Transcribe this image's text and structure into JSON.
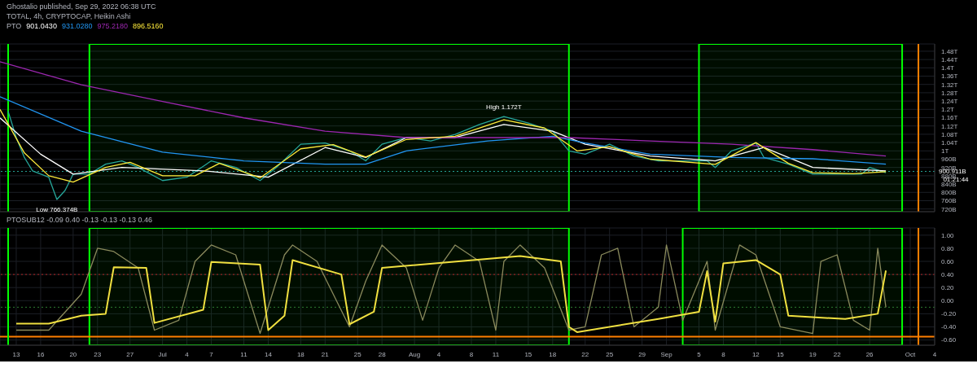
{
  "chart_data": [
    {
      "type": "line",
      "title": "TOTAL, 4h, CRYPTOCAP, Heikin Ashi",
      "legend_title": "PTO",
      "legend": "top left",
      "grid": true,
      "tick_labels": "y",
      "line_style": "solid",
      "marker": "none",
      "annotations": [
        "Ghostalio published, Sep 29, 2022 06:38 UTC",
        "01:21:44",
        {
          "text": "High 1.172T",
          "x": "2022-08-12",
          "y": 1172000000000
        },
        {
          "text": "Low 766.374B",
          "x": "2022-06-18",
          "y": 766374000000
        }
      ],
      "xlim": [
        "2022-06-11",
        "2022-10-04"
      ],
      "xticks": [
        {
          "value": "2022-06-13",
          "label": null
        },
        {
          "value": "2022-06-16",
          "label": null
        },
        {
          "value": "2022-06-20",
          "label": null
        },
        {
          "value": "2022-06-23",
          "label": null
        },
        {
          "value": "2022-06-27",
          "label": null
        },
        {
          "value": "2022-07-01",
          "label": null
        },
        {
          "value": "2022-07-04",
          "label": null
        },
        {
          "value": "2022-07-07",
          "label": null
        },
        {
          "value": "2022-07-11",
          "label": null
        },
        {
          "value": "2022-07-14",
          "label": null
        },
        {
          "value": "2022-07-18",
          "label": null
        },
        {
          "value": "2022-07-21",
          "label": null
        },
        {
          "value": "2022-07-25",
          "label": null
        },
        {
          "value": "2022-07-28",
          "label": null
        },
        {
          "value": "2022-08-01",
          "label": null
        },
        {
          "value": "2022-08-04",
          "label": null
        },
        {
          "value": "2022-08-08",
          "label": null
        },
        {
          "value": "2022-08-11",
          "label": null
        },
        {
          "value": "2022-08-15",
          "label": null
        },
        {
          "value": "2022-08-18",
          "label": null
        },
        {
          "value": "2022-08-22",
          "label": null
        },
        {
          "value": "2022-08-25",
          "label": null
        },
        {
          "value": "2022-08-29",
          "label": null
        },
        {
          "value": "2022-09-01",
          "label": null
        },
        {
          "value": "2022-09-05",
          "label": null
        },
        {
          "value": "2022-09-08",
          "label": null
        },
        {
          "value": "2022-09-12",
          "label": null
        },
        {
          "value": "2022-09-15",
          "label": null
        },
        {
          "value": "2022-09-19",
          "label": null
        },
        {
          "value": "2022-09-22",
          "label": null
        },
        {
          "value": "2022-09-26",
          "label": null
        },
        {
          "value": "2022-10-01",
          "label": null
        },
        {
          "value": "2022-10-04",
          "label": null
        }
      ],
      "ylim": [
        707000000000,
        1515000000000
      ],
      "yticks": [
        {
          "value": 720000000000,
          "label": "720B"
        },
        {
          "value": 760000000000,
          "label": "760B"
        },
        {
          "value": 800000000000,
          "label": "800B"
        },
        {
          "value": 840000000000,
          "label": "840B"
        },
        {
          "value": 880000000000,
          "label": "880B"
        },
        {
          "value": 920000000000,
          "label": "920B"
        },
        {
          "value": 960000000000,
          "label": "960B"
        },
        {
          "value": 1000000000000,
          "label": "1T"
        },
        {
          "value": 1040000000000,
          "label": "1.04T"
        },
        {
          "value": 1080000000000,
          "label": "1.08T"
        },
        {
          "value": 1120000000000,
          "label": "1.12T"
        },
        {
          "value": 1160000000000,
          "label": "1.16T"
        },
        {
          "value": 1200000000000,
          "label": "1.2T"
        },
        {
          "value": 1240000000000,
          "label": "1.24T"
        },
        {
          "value": 1280000000000,
          "label": "1.28T"
        },
        {
          "value": 1320000000000,
          "label": "1.32T"
        },
        {
          "value": 1360000000000,
          "label": "1.36T"
        },
        {
          "value": 1400000000000,
          "label": "1.4T"
        },
        {
          "value": 1440000000000,
          "label": "1.44T"
        },
        {
          "value": 1480000000000,
          "label": "1.48T"
        }
      ],
      "ref_lines": [
        {
          "axis": "y",
          "value": 900911000000,
          "label": "900.911B",
          "color": "#26a69a",
          "line_style": "dotted"
        },
        {
          "axis": "x",
          "value": "2022-06-12",
          "color": "#00ff00"
        },
        {
          "axis": "x",
          "value": "2022-10-02",
          "color": "#ff7f00"
        }
      ],
      "bands": [
        {
          "axis": "x",
          "from": "2022-06-22",
          "to": "2022-08-20",
          "color": "#00ff00"
        },
        {
          "axis": "x",
          "from": "2022-09-05",
          "to": "2022-09-30",
          "color": "#00ff00"
        }
      ],
      "series": [
        {
          "color": "#26a69a",
          "x": [
            "2022-06-12",
            "2022-06-13",
            "2022-06-14",
            "2022-06-15",
            "2022-06-17",
            "2022-06-18",
            "2022-06-19",
            "2022-06-20",
            "2022-06-22",
            "2022-06-24",
            "2022-06-26",
            "2022-06-28",
            "2022-07-01",
            "2022-07-04",
            "2022-07-07",
            "2022-07-10",
            "2022-07-13",
            "2022-07-15",
            "2022-07-18",
            "2022-07-21",
            "2022-07-24",
            "2022-07-26",
            "2022-07-28",
            "2022-07-31",
            "2022-08-03",
            "2022-08-06",
            "2022-08-09",
            "2022-08-12",
            "2022-08-15",
            "2022-08-18",
            "2022-08-20",
            "2022-08-22",
            "2022-08-25",
            "2022-08-28",
            "2022-08-31",
            "2022-09-03",
            "2022-09-06",
            "2022-09-07",
            "2022-09-09",
            "2022-09-12",
            "2022-09-13",
            "2022-09-16",
            "2022-09-19",
            "2022-09-22",
            "2022-09-25",
            "2022-09-26",
            "2022-09-28"
          ],
          "values": [
            1191000000000,
            1064000000000,
            968000000000,
            904000000000,
            873000000000,
            766000000000,
            809000000000,
            888000000000,
            888000000000,
            936000000000,
            952000000000,
            920000000000,
            857000000000,
            873000000000,
            952000000000,
            920000000000,
            857000000000,
            920000000000,
            1032000000000,
            1038000000000,
            1000000000000,
            952000000000,
            1032000000000,
            1064000000000,
            1048000000000,
            1079000000000,
            1127000000000,
            1165000000000,
            1134000000000,
            1095000000000,
            1000000000000,
            984000000000,
            1032000000000,
            975000000000,
            952000000000,
            952000000000,
            952000000000,
            920000000000,
            1000000000000,
            1038000000000,
            968000000000,
            936000000000,
            888000000000,
            888000000000,
            888000000000,
            920000000000,
            895000000000
          ]
        },
        {
          "name": "901.0430",
          "color": "#ffffff",
          "x": [
            "2022-06-11",
            "2022-06-16",
            "2022-06-20",
            "2022-06-26",
            "2022-07-06",
            "2022-07-14",
            "2022-07-21",
            "2022-07-26",
            "2022-07-31",
            "2022-08-06",
            "2022-08-12",
            "2022-08-18",
            "2022-08-22",
            "2022-08-30",
            "2022-09-07",
            "2022-09-13",
            "2022-09-19",
            "2022-09-28"
          ],
          "values": [
            1159000000000,
            984000000000,
            888000000000,
            920000000000,
            904000000000,
            873000000000,
            1016000000000,
            968000000000,
            1064000000000,
            1064000000000,
            1127000000000,
            1095000000000,
            1032000000000,
            975000000000,
            952000000000,
            1016000000000,
            920000000000,
            904000000000
          ]
        },
        {
          "name": "931.0280",
          "color": "#2196f3",
          "x": [
            "2022-06-11",
            "2022-06-21",
            "2022-07-01",
            "2022-07-11",
            "2022-07-21",
            "2022-07-26",
            "2022-07-31",
            "2022-08-10",
            "2022-08-18",
            "2022-08-22",
            "2022-08-30",
            "2022-09-09",
            "2022-09-19",
            "2022-09-28"
          ],
          "values": [
            1261000000000,
            1095000000000,
            994000000000,
            952000000000,
            936000000000,
            936000000000,
            1000000000000,
            1048000000000,
            1070000000000,
            1038000000000,
            984000000000,
            968000000000,
            962000000000,
            936000000000
          ]
        },
        {
          "name": "975.2180",
          "color": "#9c27b0",
          "x": [
            "2022-06-11",
            "2022-06-21",
            "2022-07-01",
            "2022-07-11",
            "2022-07-21",
            "2022-07-31",
            "2022-08-10",
            "2022-08-20",
            "2022-08-30",
            "2022-09-09",
            "2022-09-19",
            "2022-09-28"
          ],
          "values": [
            1429000000000,
            1318000000000,
            1238000000000,
            1159000000000,
            1095000000000,
            1064000000000,
            1064000000000,
            1064000000000,
            1048000000000,
            1032000000000,
            1006000000000,
            975000000000
          ]
        },
        {
          "name": "896.5160",
          "color": "#ffeb3b",
          "x": [
            "2022-06-11",
            "2022-06-14",
            "2022-06-17",
            "2022-06-20",
            "2022-06-24",
            "2022-06-27",
            "2022-07-01",
            "2022-07-05",
            "2022-07-08",
            "2022-07-13",
            "2022-07-18",
            "2022-07-22",
            "2022-07-26",
            "2022-07-31",
            "2022-08-06",
            "2022-08-12",
            "2022-08-17",
            "2022-08-21",
            "2022-08-25",
            "2022-08-30",
            "2022-09-07",
            "2022-09-12",
            "2022-09-16",
            "2022-09-19",
            "2022-09-24",
            "2022-09-28"
          ],
          "values": [
            1200000000000,
            990000000000,
            880000000000,
            850000000000,
            920000000000,
            945000000000,
            880000000000,
            880000000000,
            940000000000,
            870000000000,
            1010000000000,
            1030000000000,
            970000000000,
            1055000000000,
            1070000000000,
            1150000000000,
            1110000000000,
            1000000000000,
            1020000000000,
            960000000000,
            935000000000,
            1040000000000,
            940000000000,
            895000000000,
            890000000000,
            900000000000
          ]
        }
      ]
    },
    {
      "type": "line",
      "annotations": [
        "PTOSUB12 -0.09 0.40 -0.13 -0.13 -0.13 0.46"
      ],
      "grid": true,
      "line_style": "solid",
      "marker": "none",
      "xlim": [
        "2022-06-11",
        "2022-10-04"
      ],
      "xticks": [
        {
          "value": "2022-06-13",
          "label": "13"
        },
        {
          "value": "2022-06-16",
          "label": "16"
        },
        {
          "value": "2022-06-20",
          "label": "20"
        },
        {
          "value": "2022-06-23",
          "label": "23"
        },
        {
          "value": "2022-06-27",
          "label": "27"
        },
        {
          "value": "2022-07-01",
          "label": "Jul"
        },
        {
          "value": "2022-07-04",
          "label": "4"
        },
        {
          "value": "2022-07-07",
          "label": "7"
        },
        {
          "value": "2022-07-11",
          "label": "11"
        },
        {
          "value": "2022-07-14",
          "label": "14"
        },
        {
          "value": "2022-07-18",
          "label": "18"
        },
        {
          "value": "2022-07-21",
          "label": "21"
        },
        {
          "value": "2022-07-25",
          "label": "25"
        },
        {
          "value": "2022-07-28",
          "label": "28"
        },
        {
          "value": "2022-08-01",
          "label": "Aug"
        },
        {
          "value": "2022-08-04",
          "label": "4"
        },
        {
          "value": "2022-08-08",
          "label": "8"
        },
        {
          "value": "2022-08-11",
          "label": "11"
        },
        {
          "value": "2022-08-15",
          "label": "15"
        },
        {
          "value": "2022-08-18",
          "label": "18"
        },
        {
          "value": "2022-08-22",
          "label": "22"
        },
        {
          "value": "2022-08-25",
          "label": "25"
        },
        {
          "value": "2022-08-29",
          "label": "29"
        },
        {
          "value": "2022-09-01",
          "label": "Sep"
        },
        {
          "value": "2022-09-05",
          "label": "5"
        },
        {
          "value": "2022-09-08",
          "label": "8"
        },
        {
          "value": "2022-09-12",
          "label": "12"
        },
        {
          "value": "2022-09-15",
          "label": "15"
        },
        {
          "value": "2022-09-19",
          "label": "19"
        },
        {
          "value": "2022-09-22",
          "label": "22"
        },
        {
          "value": "2022-09-26",
          "label": "26"
        },
        {
          "value": "2022-10-01",
          "label": "Oct"
        },
        {
          "value": "2022-10-04",
          "label": "4"
        }
      ],
      "ylim": [
        -0.68,
        1.11
      ],
      "yticks": [
        {
          "value": -0.6,
          "label": "-0.60"
        },
        {
          "value": -0.4,
          "label": "-0.40"
        },
        {
          "value": -0.2,
          "label": "-0.20"
        },
        {
          "value": 0,
          "label": "0.00"
        },
        {
          "value": 0.2,
          "label": "0.20"
        },
        {
          "value": 0.4,
          "label": "0.40"
        },
        {
          "value": 0.6,
          "label": "0.60"
        },
        {
          "value": 0.8,
          "label": "0.80"
        },
        {
          "value": 1,
          "label": "1.00"
        }
      ],
      "ref_lines": [
        {
          "axis": "y",
          "value": 0.4,
          "color": "#b22222",
          "line_style": "dotted"
        },
        {
          "axis": "y",
          "value": -0.1,
          "color": "#2e7d32",
          "line_style": "dotted"
        },
        {
          "axis": "y",
          "value": -0.55,
          "color": "#ff7f00"
        },
        {
          "axis": "x",
          "value": "2022-06-12",
          "color": "#00ff00"
        },
        {
          "axis": "x",
          "value": "2022-10-02",
          "color": "#ff7f00"
        }
      ],
      "bands": [
        {
          "axis": "x",
          "from": "2022-06-22",
          "to": "2022-08-20",
          "color": "#00ff00"
        },
        {
          "axis": "x",
          "from": "2022-09-03",
          "to": "2022-09-30",
          "color": "#00ff00"
        }
      ],
      "series": [
        {
          "color": "#8a8a5c",
          "x": [
            "2022-06-13",
            "2022-06-17",
            "2022-06-21",
            "2022-06-23",
            "2022-06-25",
            "2022-06-28",
            "2022-06-30",
            "2022-07-03",
            "2022-07-05",
            "2022-07-07",
            "2022-07-10",
            "2022-07-13",
            "2022-07-16",
            "2022-07-17",
            "2022-07-20",
            "2022-07-24",
            "2022-07-26",
            "2022-07-28",
            "2022-07-31",
            "2022-08-02",
            "2022-08-04",
            "2022-08-06",
            "2022-08-09",
            "2022-08-11",
            "2022-08-12",
            "2022-08-14",
            "2022-08-17",
            "2022-08-20",
            "2022-08-22",
            "2022-08-24",
            "2022-08-26",
            "2022-08-28",
            "2022-08-31",
            "2022-09-01",
            "2022-09-03",
            "2022-09-06",
            "2022-09-07",
            "2022-09-10",
            "2022-09-12",
            "2022-09-15",
            "2022-09-19",
            "2022-09-20",
            "2022-09-22",
            "2022-09-24",
            "2022-09-26",
            "2022-09-27",
            "2022-09-28"
          ],
          "values": [
            -0.45,
            -0.45,
            0.1,
            0.8,
            0.75,
            0.5,
            -0.45,
            -0.3,
            0.6,
            0.85,
            0.7,
            -0.5,
            0.7,
            0.85,
            0.6,
            -0.4,
            0.3,
            0.85,
            0.5,
            -0.3,
            0.5,
            0.85,
            0.6,
            -0.45,
            0.6,
            0.85,
            0.5,
            -0.45,
            -0.4,
            0.7,
            0.8,
            -0.4,
            -0.1,
            0.85,
            -0.3,
            0.6,
            -0.45,
            0.85,
            0.7,
            -0.4,
            -0.5,
            0.6,
            0.7,
            -0.3,
            -0.45,
            0.8,
            -0.1
          ]
        },
        {
          "color": "#f0e040",
          "x": [
            "2022-06-13",
            "2022-06-17",
            "2022-06-21",
            "2022-06-24",
            "2022-06-25",
            "2022-06-29",
            "2022-06-30",
            "2022-07-06",
            "2022-07-07",
            "2022-07-13",
            "2022-07-14",
            "2022-07-16",
            "2022-07-17",
            "2022-07-23",
            "2022-07-24",
            "2022-07-27",
            "2022-07-28",
            "2022-08-14",
            "2022-08-19",
            "2022-08-20",
            "2022-08-21",
            "2022-08-31",
            "2022-09-05",
            "2022-09-06",
            "2022-09-07",
            "2022-09-08",
            "2022-09-12",
            "2022-09-15",
            "2022-09-16",
            "2022-09-23",
            "2022-09-27",
            "2022-09-28"
          ],
          "values": [
            -0.35,
            -0.35,
            -0.23,
            -0.2,
            0.51,
            0.5,
            -0.34,
            -0.14,
            0.59,
            0.55,
            -0.45,
            -0.23,
            0.62,
            0.4,
            -0.36,
            -0.17,
            0.5,
            0.68,
            0.6,
            -0.4,
            -0.48,
            -0.28,
            -0.17,
            0.45,
            -0.32,
            0.57,
            0.62,
            0.4,
            -0.23,
            -0.28,
            -0.2,
            0.46
          ]
        }
      ]
    }
  ]
}
